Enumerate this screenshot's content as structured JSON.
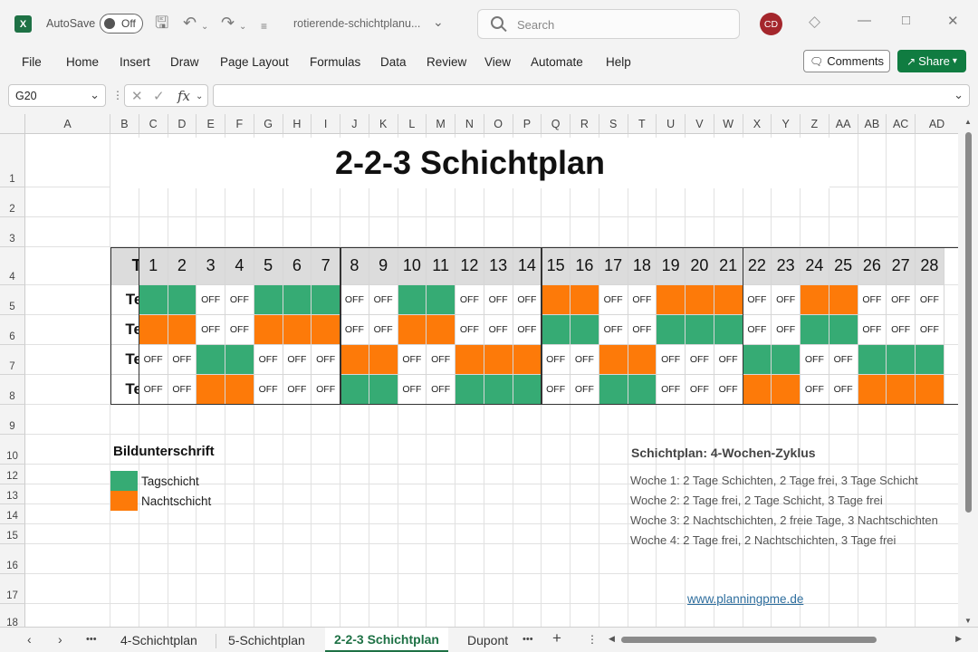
{
  "titlebar": {
    "app_icon": "X",
    "autosave_label": "AutoSave",
    "autosave_state": "Off",
    "filename": "rotierende-schichtplanu...",
    "search_placeholder": "Search",
    "user_initials": "CD"
  },
  "menu": [
    "File",
    "Home",
    "Insert",
    "Draw",
    "Page Layout",
    "Formulas",
    "Data",
    "Review",
    "View",
    "Automate",
    "Help"
  ],
  "buttons": {
    "comments": "Comments",
    "share": "Share"
  },
  "formula_bar": {
    "name_box": "G20",
    "formula": ""
  },
  "columns": [
    "A",
    "B",
    "C",
    "D",
    "E",
    "F",
    "G",
    "H",
    "I",
    "J",
    "K",
    "L",
    "M",
    "N",
    "O",
    "P",
    "Q",
    "R",
    "S",
    "T",
    "U",
    "V",
    "W",
    "X",
    "Y",
    "Z",
    "AA",
    "AB",
    "AC",
    "AD"
  ],
  "rows": [
    "1",
    "2",
    "3",
    "4",
    "5",
    "6",
    "7",
    "8",
    "9",
    "10",
    "12",
    "13",
    "14",
    "15",
    "16",
    "17",
    "18"
  ],
  "sheet": {
    "title": "2-2-3 Schichtplan",
    "team_header": "Team",
    "off_label": "OFF",
    "days": [
      "1",
      "2",
      "3",
      "4",
      "5",
      "6",
      "7",
      "8",
      "9",
      "10",
      "11",
      "12",
      "13",
      "14",
      "15",
      "16",
      "17",
      "18",
      "19",
      "20",
      "21",
      "22",
      "23",
      "24",
      "25",
      "26",
      "27",
      "28"
    ],
    "teams": [
      {
        "name": "Team A",
        "pattern": "DDOODDDOODDOOONNOONNNOONNOOO"
      },
      {
        "name": "Team B",
        "pattern": "NNOONNNOONNOOODDOODDDOODDOOO"
      },
      {
        "name": "Team C",
        "pattern": "OODDOOONNOONNNOONNOOODDOODDD"
      },
      {
        "name": "Team D",
        "pattern": "OONNOOODDOODDDOODDOOONNOONNN"
      }
    ],
    "legend": {
      "caption": "Bildunterschrift",
      "day_label": "Tagschicht",
      "night_label": "Nachtschicht",
      "day_color": "#36ab74",
      "night_color": "#fd7a09"
    },
    "plan": {
      "heading": "Schichtplan: 4-Wochen-Zyklus",
      "lines": [
        "Woche 1: 2 Tage Schichten, 2 Tage frei, 3 Tage Schicht",
        "Woche 2: 2 Tage frei, 2 Tage Schicht, 3 Tage frei",
        "Woche 3: 2 Nachtschichten, 2 freie Tage, 3 Nachtschichten",
        "Woche 4: 2 Tage frei, 2 Nachtschichten, 3 Tage frei"
      ]
    },
    "link": "www.planningpme.de"
  },
  "tabs": {
    "more": "•••",
    "sheets": [
      "4-Schichtplan",
      "5-Schichtplan",
      "2-2-3 Schichtplan",
      "Dupont"
    ],
    "active": "2-2-3 Schichtplan",
    "add": "+"
  }
}
